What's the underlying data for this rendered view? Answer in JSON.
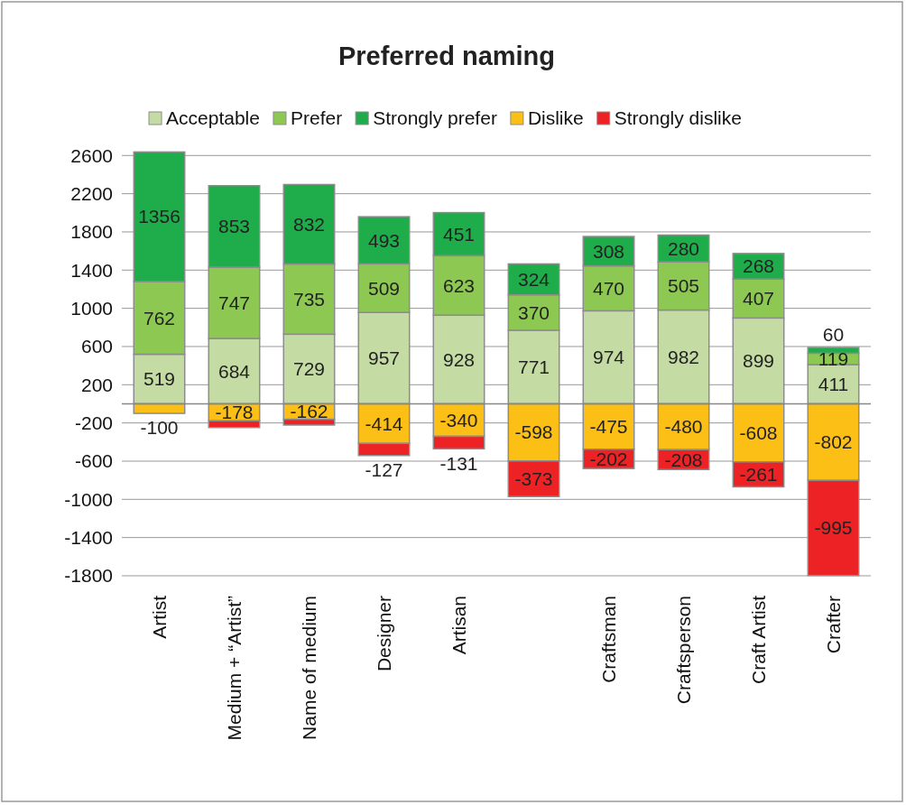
{
  "chart_data": {
    "type": "bar",
    "title": "Preferred naming",
    "stacked": true,
    "categories": [
      "Artist",
      "Medium + “Artist”",
      "Name of medium",
      "Designer",
      "Artisan",
      null,
      "Craftsman",
      "Craftsperson",
      "Craft Artist",
      "Crafter"
    ],
    "series": [
      {
        "name": "Acceptable",
        "color": "#c4dca4",
        "values": [
          519,
          684,
          729,
          957,
          928,
          771,
          974,
          982,
          899,
          411
        ]
      },
      {
        "name": "Prefer",
        "color": "#8dc853",
        "values": [
          762,
          747,
          735,
          509,
          623,
          370,
          470,
          505,
          407,
          119
        ]
      },
      {
        "name": "Strongly prefer",
        "color": "#1fad4b",
        "values": [
          1356,
          853,
          832,
          493,
          451,
          324,
          308,
          280,
          268,
          60
        ]
      },
      {
        "name": "Dislike",
        "color": "#fbbf16",
        "values": [
          -100,
          -178,
          -162,
          -414,
          -340,
          -598,
          -475,
          -480,
          -608,
          -802
        ]
      },
      {
        "name": "Strongly dislike",
        "color": "#ed2224",
        "values": [
          null,
          -70,
          -60,
          -127,
          -131,
          -373,
          -202,
          -208,
          -261,
          -995
        ],
        "value_labels": [
          null,
          null,
          null,
          "-127",
          "-131",
          "-373",
          "-202",
          "-208",
          "-261",
          "-995"
        ]
      }
    ],
    "data_labels": true,
    "ylim": [
      -1800,
      2650
    ],
    "yticks": [
      -1800,
      -1400,
      -1000,
      -600,
      -200,
      200,
      600,
      1000,
      1400,
      1800,
      2200,
      2600
    ],
    "grid": "y",
    "legend": "top"
  }
}
